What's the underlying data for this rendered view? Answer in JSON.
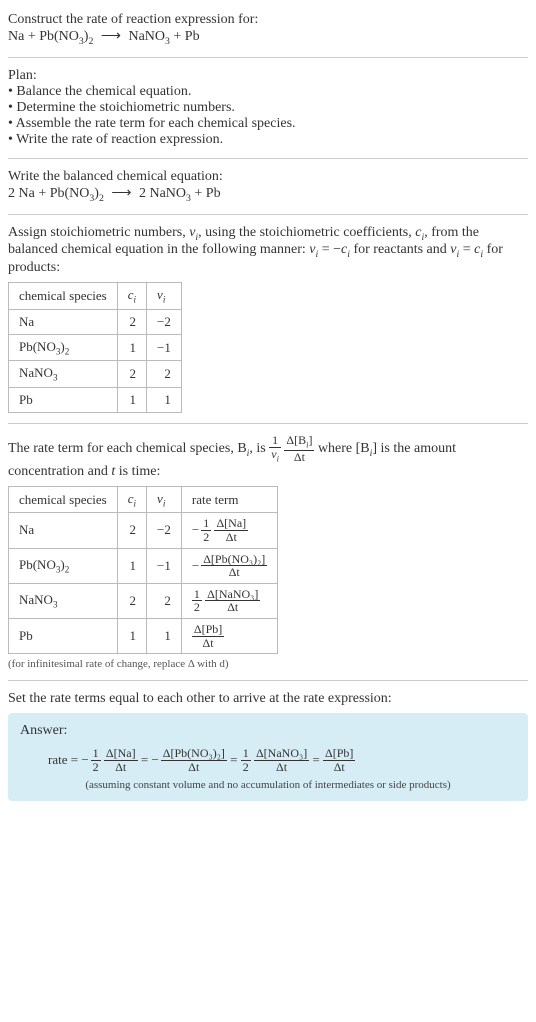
{
  "header": {
    "prompt": "Construct the rate of reaction expression for:",
    "equation_left": "Na + Pb(NO",
    "equation_left_sub1": "3",
    "equation_left_after1": ")",
    "equation_left_sub2": "2",
    "arrow": "⟶",
    "equation_right_1": "NaNO",
    "equation_right_sub1": "3",
    "equation_right_2": " + Pb"
  },
  "plan": {
    "title": "Plan:",
    "items": [
      "Balance the chemical equation.",
      "Determine the stoichiometric numbers.",
      "Assemble the rate term for each chemical species.",
      "Write the rate of reaction expression."
    ]
  },
  "balanced": {
    "title": "Write the balanced chemical equation:",
    "lhs_coef1": "2 Na + Pb(NO",
    "lhs_sub1": "3",
    "lhs_after1": ")",
    "lhs_sub2": "2",
    "arrow": "⟶",
    "rhs_coef1": "2 NaNO",
    "rhs_sub1": "3",
    "rhs_after1": " + Pb"
  },
  "assign": {
    "text1": "Assign stoichiometric numbers, ",
    "nu": "ν",
    "i": "i",
    "text2": ", using the stoichiometric coefficients, ",
    "c": "c",
    "text3": ", from the balanced chemical equation in the following manner: ",
    "eq1_lhs": "ν",
    "eq1_eq": " = −",
    "eq1_rhs": "c",
    "text4": " for reactants and ",
    "eq2": " = ",
    "text5": " for products:"
  },
  "table1": {
    "headers": {
      "species": "chemical species",
      "c": "c",
      "c_sub": "i",
      "nu": "ν",
      "nu_sub": "i"
    },
    "rows": [
      {
        "name": "Na",
        "sub1": "",
        "after1": "",
        "sub2": "",
        "c": "2",
        "nu": "−2"
      },
      {
        "name": "Pb(NO",
        "sub1": "3",
        "after1": ")",
        "sub2": "2",
        "c": "1",
        "nu": "−1"
      },
      {
        "name": "NaNO",
        "sub1": "3",
        "after1": "",
        "sub2": "",
        "c": "2",
        "nu": "2"
      },
      {
        "name": "Pb",
        "sub1": "",
        "after1": "",
        "sub2": "",
        "c": "1",
        "nu": "1"
      }
    ]
  },
  "rateintro": {
    "text1": "The rate term for each chemical species, B",
    "text2": ", is ",
    "frac1_num": "1",
    "frac1_den_nu": "ν",
    "frac2_num": "Δ[B",
    "frac2_num_close": "]",
    "frac2_den": "Δt",
    "text3": " where [B",
    "text4": "] is the amount concentration and ",
    "t": "t",
    "text5": " is time:"
  },
  "table2": {
    "headers": {
      "species": "chemical species",
      "c": "c",
      "c_sub": "i",
      "nu": "ν",
      "nu_sub": "i",
      "rate": "rate term"
    },
    "rows": [
      {
        "name": "Na",
        "sub1": "",
        "after1": "",
        "sub2": "",
        "c": "2",
        "nu": "−2",
        "neg": "−",
        "fnum": "1",
        "fden": "2",
        "dnum": "Δ[Na]",
        "dden": "Δt"
      },
      {
        "name": "Pb(NO",
        "sub1": "3",
        "after1": ")",
        "sub2": "2",
        "c": "1",
        "nu": "−1",
        "neg": "−",
        "fnum": "",
        "fden": "",
        "dnum": "Δ[Pb(NO₃)₂]",
        "dden": "Δt"
      },
      {
        "name": "NaNO",
        "sub1": "3",
        "after1": "",
        "sub2": "",
        "c": "2",
        "nu": "2",
        "neg": "",
        "fnum": "1",
        "fden": "2",
        "dnum": "Δ[NaNO₃]",
        "dden": "Δt"
      },
      {
        "name": "Pb",
        "sub1": "",
        "after1": "",
        "sub2": "",
        "c": "1",
        "nu": "1",
        "neg": "",
        "fnum": "",
        "fden": "",
        "dnum": "Δ[Pb]",
        "dden": "Δt"
      }
    ],
    "note": "(for infinitesimal rate of change, replace Δ with d)"
  },
  "final": {
    "title": "Set the rate terms equal to each other to arrive at the rate expression:"
  },
  "answer": {
    "label": "Answer:",
    "rate_label": "rate = ",
    "t1_neg": "−",
    "t1_fnum": "1",
    "t1_fden": "2",
    "t1_dnum": "Δ[Na]",
    "t1_dden": "Δt",
    "eq": " = ",
    "t2_neg": "−",
    "t2_dnum": "Δ[Pb(NO₃)₂]",
    "t2_dden": "Δt",
    "t3_fnum": "1",
    "t3_fden": "2",
    "t3_dnum": "Δ[NaNO₃]",
    "t3_dden": "Δt",
    "t4_dnum": "Δ[Pb]",
    "t4_dden": "Δt",
    "assume": "(assuming constant volume and no accumulation of intermediates or side products)"
  },
  "colors": {
    "answer_bg": "#d6edf5",
    "border": "#bbbbbb",
    "hr": "#cccccc",
    "text": "#333333"
  }
}
